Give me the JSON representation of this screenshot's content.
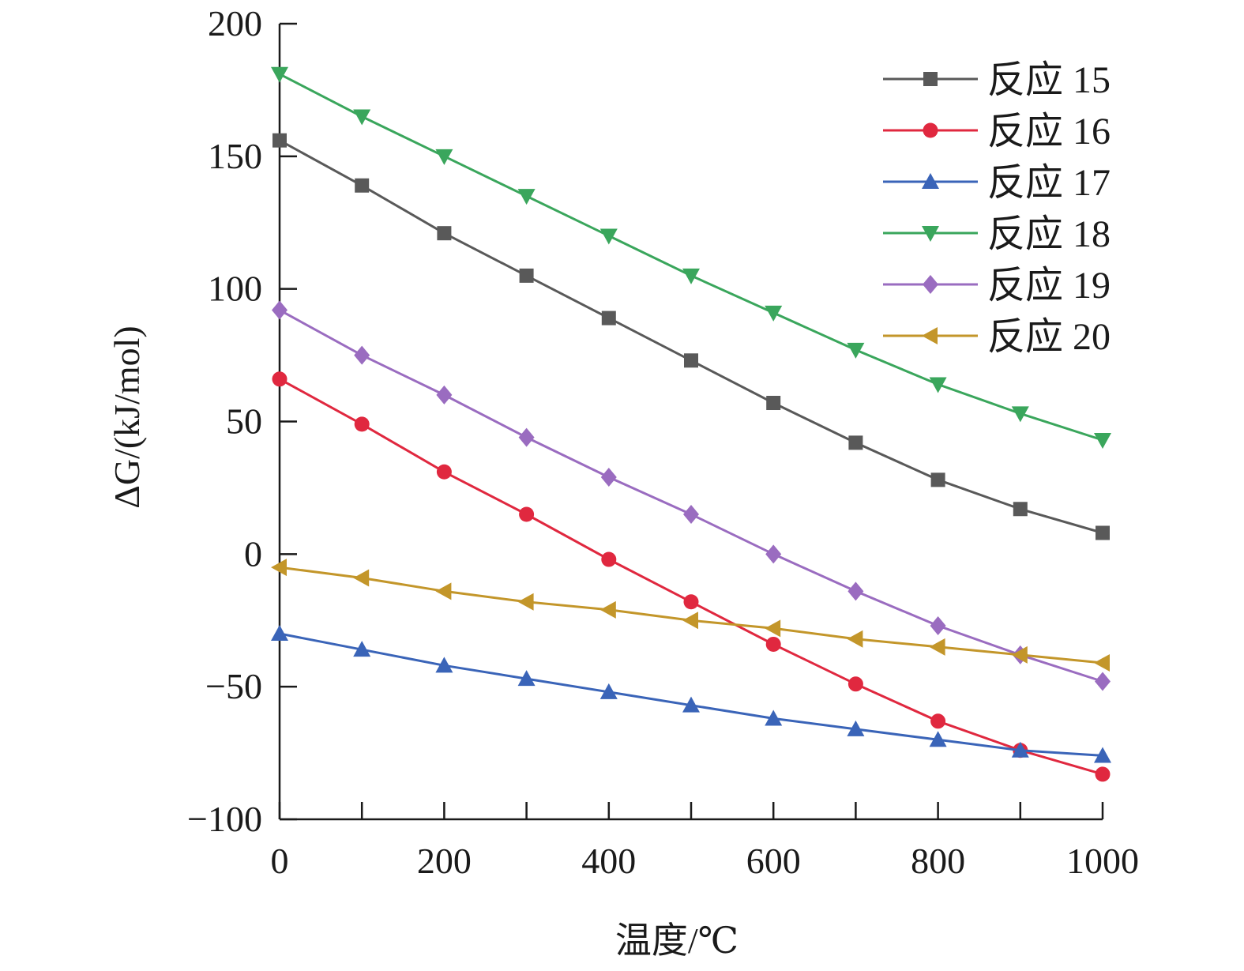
{
  "chart_data": {
    "type": "line",
    "xlabel": "温度/℃",
    "ylabel": "ΔG/(kJ/mol)",
    "xlim": [
      0,
      1000
    ],
    "ylim": [
      -100,
      200
    ],
    "xticks": [
      0,
      200,
      400,
      600,
      800,
      1000
    ],
    "xtick_labels": [
      "0",
      "200",
      "400",
      "600",
      "800",
      "1000"
    ],
    "yticks": [
      200,
      150,
      100,
      50,
      0,
      -50,
      -100
    ],
    "ytick_labels": [
      "200",
      "150",
      "100",
      "50",
      "0",
      "−50",
      "−100"
    ],
    "grid": false,
    "legend_position": "top-right",
    "x": [
      0,
      100,
      200,
      300,
      400,
      500,
      600,
      700,
      800,
      900,
      1000
    ],
    "series": [
      {
        "name": "反应 15",
        "color": "#595959",
        "marker": "square",
        "values": [
          156,
          139,
          121,
          105,
          89,
          73,
          57,
          42,
          28,
          17,
          8
        ]
      },
      {
        "name": "反应 16",
        "color": "#e0283f",
        "marker": "circle",
        "values": [
          66,
          49,
          31,
          15,
          -2,
          -18,
          -34,
          -49,
          -63,
          -74,
          -83
        ]
      },
      {
        "name": "反应 17",
        "color": "#3a64b8",
        "marker": "triangle-up",
        "values": [
          -30,
          -36,
          -42,
          -47,
          -52,
          -57,
          -62,
          -66,
          -70,
          -74,
          -76
        ]
      },
      {
        "name": "反应 18",
        "color": "#3aa65c",
        "marker": "triangle-down",
        "values": [
          181,
          165,
          150,
          135,
          120,
          105,
          91,
          77,
          64,
          53,
          43
        ]
      },
      {
        "name": "反应 19",
        "color": "#9a6cc0",
        "marker": "diamond",
        "values": [
          92,
          75,
          60,
          44,
          29,
          15,
          0,
          -14,
          -27,
          -38,
          -48
        ]
      },
      {
        "name": "反应 20",
        "color": "#c3962a",
        "marker": "triangle-left",
        "values": [
          -5,
          -9,
          -14,
          -18,
          -21,
          -25,
          -28,
          -32,
          -35,
          -38,
          -41
        ]
      }
    ]
  }
}
